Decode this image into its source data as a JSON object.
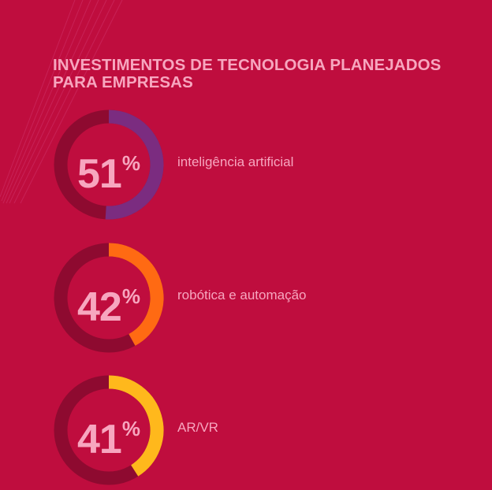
{
  "title": "INVESTIMENTOS DE TECNOLOGIA PLANEJADOS PARA EMPRESAS",
  "colors": {
    "background": "#bf0d3e",
    "track": "#8e0a30",
    "text": "#f7a6bf",
    "series": [
      "#7b2c80",
      "#ff6a13",
      "#ffb81c"
    ]
  },
  "chart_data": {
    "type": "pie",
    "title": "INVESTIMENTOS DE TECNOLOGIA PLANEJADOS PARA EMPRESAS",
    "categories": [
      "inteligência artificial",
      "robótica e automação",
      "AR/VR"
    ],
    "values": [
      51,
      42,
      41
    ],
    "unit": "%",
    "items": [
      {
        "value": "51",
        "label": "inteligência artificial",
        "color": "#7b2c80"
      },
      {
        "value": "42",
        "label": "robótica e automação",
        "color": "#ff6a13"
      },
      {
        "value": "41",
        "label": "AR/VR",
        "color": "#ffb81c"
      }
    ]
  }
}
